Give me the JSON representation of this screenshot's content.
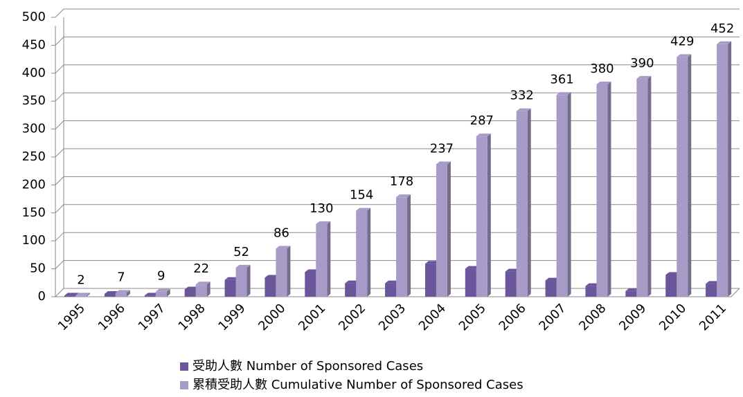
{
  "chart_data": {
    "type": "bar",
    "categories": [
      "1995",
      "1996",
      "1997",
      "1998",
      "1999",
      "2000",
      "2001",
      "2002",
      "2003",
      "2004",
      "2005",
      "2006",
      "2007",
      "2008",
      "2009",
      "2010",
      "2011"
    ],
    "series": [
      {
        "name": "受助人數 Number of Sponsored Cases",
        "color": "#6b559b",
        "values": [
          2,
          5,
          2,
          13,
          30,
          34,
          44,
          24,
          24,
          59,
          50,
          45,
          29,
          19,
          10,
          39,
          23
        ]
      },
      {
        "name": "累積受助人數 Cumulative Number of Sponsored Cases",
        "color": "#a99bc8",
        "values": [
          2,
          7,
          9,
          22,
          52,
          86,
          130,
          154,
          178,
          237,
          287,
          332,
          361,
          380,
          390,
          429,
          452
        ]
      }
    ],
    "ylim": [
      0,
      500
    ],
    "yticks": [
      0,
      50,
      100,
      150,
      200,
      250,
      300,
      350,
      400,
      450,
      500
    ],
    "grid": true
  }
}
